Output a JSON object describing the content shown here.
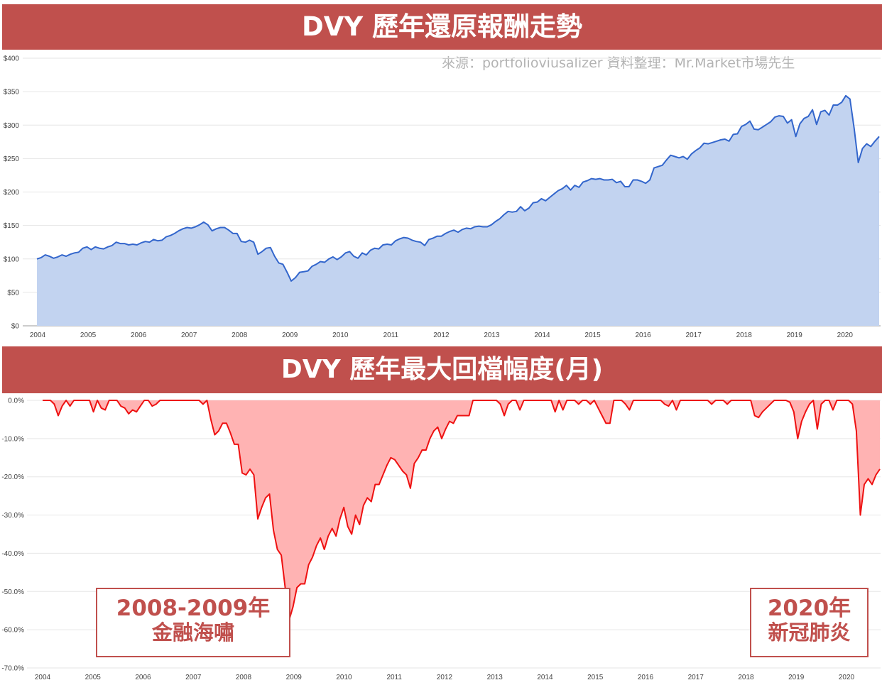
{
  "banners": {
    "top": "DVY 歷年還原報酬走勢",
    "bottom": "DVY 歷年最大回檔幅度(月)"
  },
  "source": "來源：portfolioviusalizer 資料整理：Mr.Market市場先生",
  "callouts": {
    "left": {
      "line1": "2008-2009年",
      "line2": "金融海嘯"
    },
    "right": {
      "line1": "2020年",
      "line2": "新冠肺炎"
    }
  },
  "colors": {
    "banner": "#c0504d",
    "line_blue": "#3366cc",
    "fill_blue": "#c2d3f0",
    "line_red": "#ee1111",
    "fill_red": "#ffb3b3"
  },
  "chart_data": [
    {
      "type": "area",
      "x_ticks": [
        "2004",
        "2005",
        "2006",
        "2007",
        "2008",
        "2009",
        "2010",
        "2011",
        "2012",
        "2013",
        "2014",
        "2015",
        "2016",
        "2017",
        "2018",
        "2019",
        "2020"
      ],
      "y_ticks": [
        "$0",
        "$50",
        "$100",
        "$150",
        "$200",
        "$250",
        "$300",
        "$350",
        "$400"
      ],
      "ylim": [
        0,
        400
      ],
      "x_start": 2004.0,
      "x_end": 2020.7,
      "grid": true,
      "series": [
        {
          "values": [
            100,
            102,
            106,
            104,
            101,
            103,
            106,
            104,
            107,
            109,
            110,
            116,
            118,
            114,
            118,
            116,
            115,
            118,
            120,
            125,
            123,
            123,
            121,
            122,
            121,
            124,
            126,
            125,
            129,
            127,
            128,
            133,
            135,
            138,
            142,
            145,
            147,
            146,
            148,
            151,
            155,
            151,
            142,
            145,
            147,
            147,
            143,
            138,
            138,
            126,
            125,
            128,
            125,
            107,
            111,
            116,
            117,
            104,
            94,
            92,
            80,
            67,
            72,
            80,
            81,
            82,
            89,
            92,
            96,
            95,
            100,
            103,
            99,
            103,
            109,
            111,
            104,
            101,
            109,
            106,
            113,
            116,
            115,
            121,
            122,
            121,
            127,
            130,
            132,
            131,
            128,
            126,
            125,
            120,
            129,
            131,
            134,
            134,
            138,
            141,
            143,
            140,
            144,
            146,
            145,
            148,
            149,
            148,
            148,
            151,
            156,
            160,
            166,
            171,
            170,
            171,
            178,
            172,
            176,
            184,
            185,
            190,
            187,
            192,
            197,
            202,
            205,
            210,
            203,
            210,
            207,
            215,
            217,
            220,
            219,
            220,
            218,
            218,
            219,
            214,
            216,
            208,
            208,
            218,
            218,
            216,
            213,
            218,
            236,
            238,
            240,
            248,
            255,
            253,
            251,
            253,
            249,
            257,
            262,
            266,
            273,
            272,
            274,
            276,
            278,
            279,
            276,
            286,
            287,
            298,
            301,
            306,
            294,
            293,
            297,
            301,
            305,
            312,
            314,
            313,
            303,
            308,
            283,
            302,
            310,
            313,
            323,
            301,
            320,
            322,
            315,
            330,
            330,
            334,
            344,
            339,
            295,
            244,
            265,
            272,
            268,
            276,
            283
          ]
        }
      ]
    },
    {
      "type": "area",
      "x_ticks": [
        "2004",
        "2005",
        "2006",
        "2007",
        "2008",
        "2009",
        "2010",
        "2011",
        "2012",
        "2013",
        "2014",
        "2015",
        "2016",
        "2017",
        "2018",
        "2019",
        "2020"
      ],
      "y_ticks": [
        "0.0%",
        "-10.0%",
        "-20.0%",
        "-30.0%",
        "-40.0%",
        "-50.0%",
        "-60.0%",
        "-70.0%"
      ],
      "ylim": [
        -70,
        0
      ],
      "x_start": 2004.0,
      "x_end": 2020.7,
      "grid": true,
      "series": [
        {
          "values": [
            0,
            0,
            0,
            -1,
            -4,
            -1.5,
            0,
            -1.5,
            0,
            0,
            0,
            0,
            0,
            -3,
            0,
            -2,
            -2.5,
            0,
            0,
            0,
            -1.5,
            -2,
            -3.5,
            -2.5,
            -3,
            -1.5,
            0,
            0,
            -1.5,
            -1,
            0,
            0,
            0,
            0,
            0,
            0,
            0,
            0,
            0,
            0,
            0,
            -1,
            0,
            -5,
            -9,
            -8,
            -6,
            -6,
            -8.5,
            -11.5,
            -11.5,
            -19,
            -19.5,
            -18,
            -19.5,
            -31,
            -28,
            -25.5,
            -24.5,
            -34,
            -39,
            -40.5,
            -49,
            -57.5,
            -54,
            -49,
            -48,
            -48,
            -43,
            -41,
            -38,
            -36,
            -39,
            -35.5,
            -33.5,
            -35.5,
            -31,
            -28,
            -33,
            -35,
            -30,
            -32.5,
            -27.5,
            -25.5,
            -26.5,
            -22,
            -22,
            -19.5,
            -17,
            -15,
            -15.5,
            -17,
            -18.5,
            -19.5,
            -23,
            -16.5,
            -15,
            -13,
            -13,
            -10,
            -8,
            -7,
            -10,
            -7.5,
            -5.5,
            -6,
            -4,
            -4,
            -4,
            -4,
            0,
            0,
            0,
            0,
            0,
            0,
            0,
            -1,
            -4,
            -1,
            0,
            0,
            -2.5,
            0,
            0,
            0,
            0,
            0,
            0,
            0,
            0,
            -3,
            0,
            -2.5,
            0,
            0,
            0,
            -1,
            0,
            0,
            -1,
            0,
            -2,
            -4,
            -6,
            -6,
            0,
            0,
            0,
            -1,
            -2.5,
            0,
            0,
            0,
            0,
            0,
            0,
            0,
            0,
            -1,
            -1.5,
            0,
            -2.5,
            0,
            0,
            0,
            0,
            0,
            0,
            0,
            0,
            -1,
            0,
            0,
            0,
            -1,
            0,
            0,
            0,
            0,
            0,
            0,
            -4,
            -4.5,
            -3,
            -2,
            -1,
            0,
            0,
            0,
            0,
            -0.5,
            -3,
            -10,
            -5.5,
            -3,
            -1,
            0,
            -7.5,
            -1,
            0,
            0,
            -2.5,
            0,
            0,
            0,
            0,
            -1,
            -8,
            -30,
            -22,
            -20.5,
            -22,
            -19.5,
            -18
          ]
        }
      ]
    }
  ]
}
